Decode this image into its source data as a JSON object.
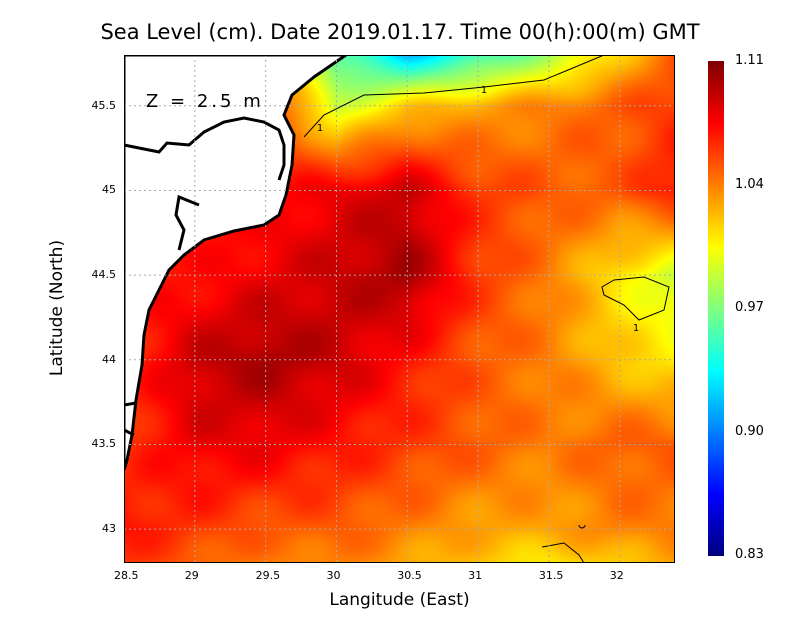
{
  "chart_data": {
    "type": "heatmap",
    "title": "Sea Level (cm). Date 2019.01.17. Time 00(h):00(m) GMT",
    "xlabel": "Langitude (East)",
    "ylabel": "Latitude (North)",
    "annotation": "Z = 2.5 m",
    "xlim": [
      28.5,
      32.39
    ],
    "ylim": [
      42.8,
      45.8
    ],
    "xticks": [
      "28.5",
      "29",
      "29.5",
      "30",
      "30.5",
      "31",
      "31.5",
      "32"
    ],
    "yticks": [
      "43",
      "43.5",
      "44",
      "44.5",
      "45",
      "45.5"
    ],
    "grid": true,
    "colorbar": {
      "min": 0.83,
      "max": 1.11,
      "labels": [
        "1.11",
        "1.04",
        "0.97",
        "0.90",
        "0.83"
      ]
    },
    "contour_label": "1",
    "grid_lon": [
      28.5,
      29,
      29.5,
      30,
      30.5,
      31,
      31.5,
      32,
      32.39
    ],
    "grid_lat": [
      45.8,
      45.5,
      45.0,
      44.5,
      44.0,
      43.5,
      43.0,
      42.8
    ],
    "values": [
      [
        1.05,
        1.05,
        1.05,
        0.96,
        0.92,
        0.95,
        0.98,
        1.02,
        1.05
      ],
      [
        1.06,
        1.06,
        1.06,
        0.99,
        1.02,
        1.03,
        1.04,
        1.05,
        1.06
      ],
      [
        1.07,
        1.07,
        1.07,
        1.08,
        1.09,
        1.06,
        1.05,
        1.05,
        1.07
      ],
      [
        1.07,
        1.07,
        1.08,
        1.09,
        1.1,
        1.06,
        1.04,
        1.01,
        0.99
      ],
      [
        1.06,
        1.09,
        1.1,
        1.09,
        1.07,
        1.05,
        1.04,
        1.02,
        1.01
      ],
      [
        1.06,
        1.08,
        1.08,
        1.07,
        1.06,
        1.05,
        1.04,
        1.05,
        1.05
      ],
      [
        1.07,
        1.06,
        1.05,
        1.05,
        1.04,
        1.03,
        1.03,
        1.04,
        1.04
      ],
      [
        1.06,
        1.05,
        1.04,
        1.04,
        1.03,
        1.02,
        1.01,
        1.02,
        1.03
      ]
    ]
  }
}
